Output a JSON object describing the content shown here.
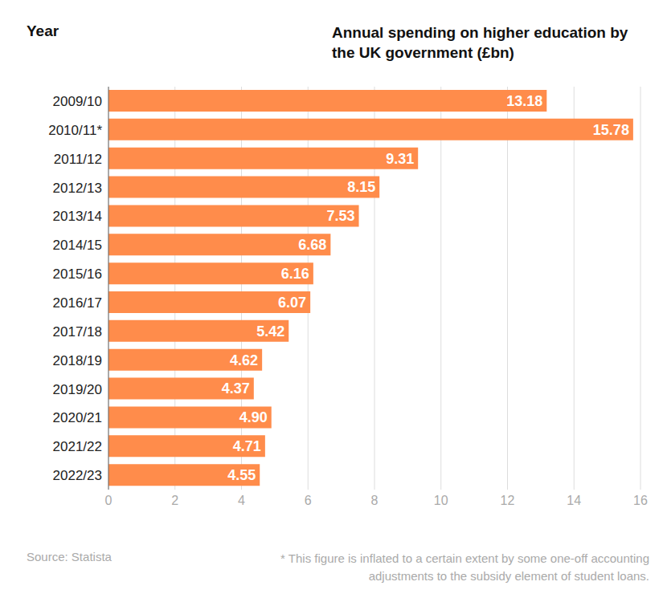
{
  "chart_data": {
    "type": "bar",
    "title": "Annual spending on higher education by the UK government (£bn)",
    "y_label": "Year",
    "annotations": [
      "Source: Statista",
      "* This figure is inflated to a certain extent by some one-off accounting adjustments to the subsidy element of student loans."
    ],
    "categories": [
      "2009/10",
      "2010/11*",
      "2011/12",
      "2012/13",
      "2013/14",
      "2014/15",
      "2015/16",
      "2016/17",
      "2017/18",
      "2018/19",
      "2019/20",
      "2020/21",
      "2021/22",
      "2022/23"
    ],
    "values": [
      13.18,
      15.78,
      9.31,
      8.15,
      7.53,
      6.68,
      6.16,
      6.07,
      5.42,
      4.62,
      4.37,
      4.9,
      4.71,
      4.55
    ],
    "value_labels": [
      "13.18",
      "15.78",
      "9.31",
      "8.15",
      "7.53",
      "6.68",
      "6.16",
      "6.07",
      "5.42",
      "4.62",
      "4.37",
      "4.90",
      "4.71",
      "4.55"
    ],
    "color": "#ff8c4b",
    "orientation": "horizontal",
    "data_labels": true,
    "grid": true,
    "xlim": [
      0,
      16
    ],
    "xticks": [
      0,
      2,
      4,
      6,
      8,
      10,
      12,
      14,
      16
    ]
  }
}
